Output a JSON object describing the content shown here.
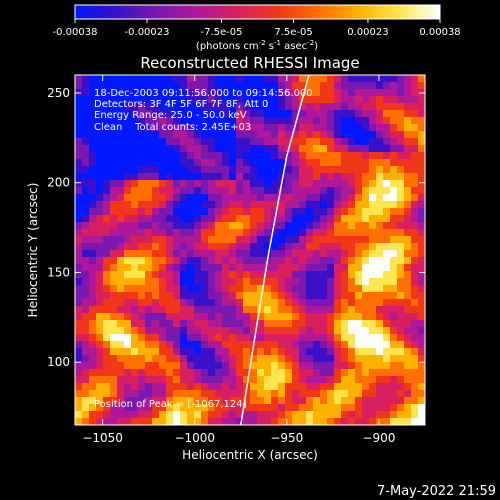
{
  "colorbar": {
    "ticks": [
      -0.00038,
      -0.00023,
      -7.5e-05,
      7.5e-05,
      0.00023,
      0.00038
    ],
    "tick_labels": [
      "-0.00038",
      "-0.00023",
      "-7.5e-05",
      "7.5e-05",
      "0.00023",
      "0.00038"
    ],
    "unit_label": "(photons cm",
    "unit_exp1": "-2",
    "unit_mid": " s",
    "unit_exp2": "-1",
    "unit_end": " asec",
    "unit_exp3": "-2",
    "unit_close": ")",
    "range": [
      -0.00038,
      0.00038
    ],
    "colors": [
      "#0018ff",
      "#3a10c8",
      "#7a18b0",
      "#b0189a",
      "#d82060",
      "#f03818",
      "#ff7000",
      "#ffb000",
      "#ffe650",
      "#ffffff"
    ]
  },
  "chart_data": {
    "type": "heatmap",
    "title": "Reconstructed RHESSI Image",
    "xlabel": "Heliocentric X (arcsec)",
    "ylabel": "Heliocentric Y (arcsec)",
    "xlim": [
      -1065,
      -875
    ],
    "ylim": [
      65,
      260
    ],
    "xticks": [
      -1050,
      -1000,
      -950,
      -900
    ],
    "yticks": [
      100,
      150,
      200,
      250
    ],
    "xtick_labels": [
      "−1050",
      "−1000",
      "−950",
      "−900"
    ],
    "ytick_labels": [
      "100",
      "150",
      "200",
      "250"
    ],
    "annotations": [
      "18-Dec-2003 09:11:56.000 to 09:14:56.000",
      "Detectors: 3F 4F 5F 6F 7F 8F, Att 0",
      "Energy Range: 25.0 - 50.0 keV",
      "Clean    Total counts: 2.45E+03"
    ],
    "peak_label": "Position of Peak = [-1067,124]",
    "limb_curve": [
      [
        -975,
        65
      ],
      [
        -968,
        110
      ],
      [
        -960,
        160
      ],
      [
        -950,
        215
      ],
      [
        -938,
        260
      ]
    ]
  },
  "footer": {
    "date": "7-May-2022 21:59"
  }
}
